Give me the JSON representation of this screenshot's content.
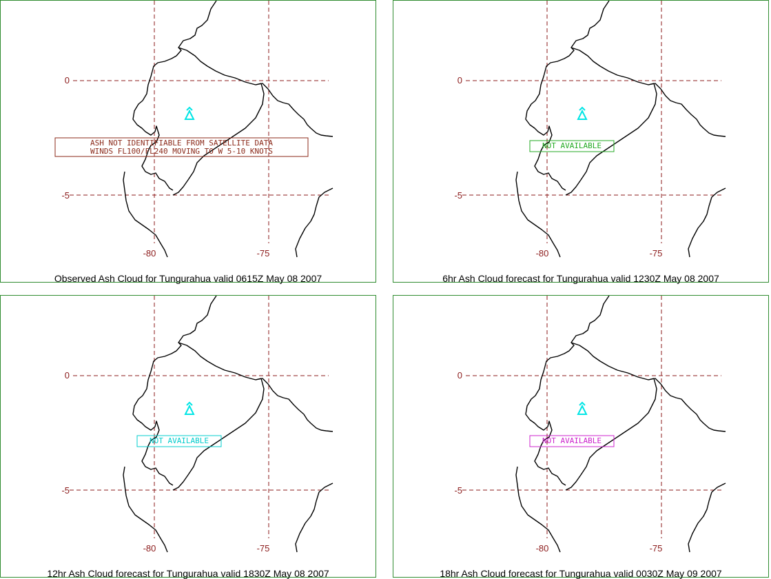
{
  "colors": {
    "grid": "#8b1a1a",
    "coast": "#000000",
    "volcano": "#00e5e5",
    "frame": "#2e8b2e"
  },
  "volcano_icon": "volcano-icon",
  "panels": [
    {
      "caption": "Observed Ash Cloud for Tungurahua valid 0615Z May 08 2007",
      "lat_labels": [
        "0",
        "-5"
      ],
      "lon_labels": [
        "-80",
        "-75"
      ],
      "box": {
        "color": "#8b2a1a",
        "lines": [
          "ASH NOT IDENTIFIABLE FROM SATELLITE DATA",
          "WINDS FL100/FL240 MOVING TO W 5-10 KNOTS"
        ]
      }
    },
    {
      "caption": "6hr Ash Cloud forecast for Tungurahua valid 1230Z May 08 2007",
      "lat_labels": [
        "0",
        "-5"
      ],
      "lon_labels": [
        "-80",
        "-75"
      ],
      "box": {
        "color": "#22aa22",
        "lines": [
          "NOT AVAILABLE"
        ]
      }
    },
    {
      "caption": "12hr Ash Cloud forecast for Tungurahua valid 1830Z May 08 2007",
      "lat_labels": [
        "0",
        "-5"
      ],
      "lon_labels": [
        "-80",
        "-75"
      ],
      "box": {
        "color": "#00cccc",
        "lines": [
          "NOT AVAILABLE"
        ]
      }
    },
    {
      "caption": "18hr Ash Cloud forecast for Tungurahua valid 0030Z May 09 2007",
      "lat_labels": [
        "0",
        "-5"
      ],
      "lon_labels": [
        "-80",
        "-75"
      ],
      "box": {
        "color": "#cc22cc",
        "lines": [
          "NOT AVAILABLE"
        ]
      }
    }
  ]
}
